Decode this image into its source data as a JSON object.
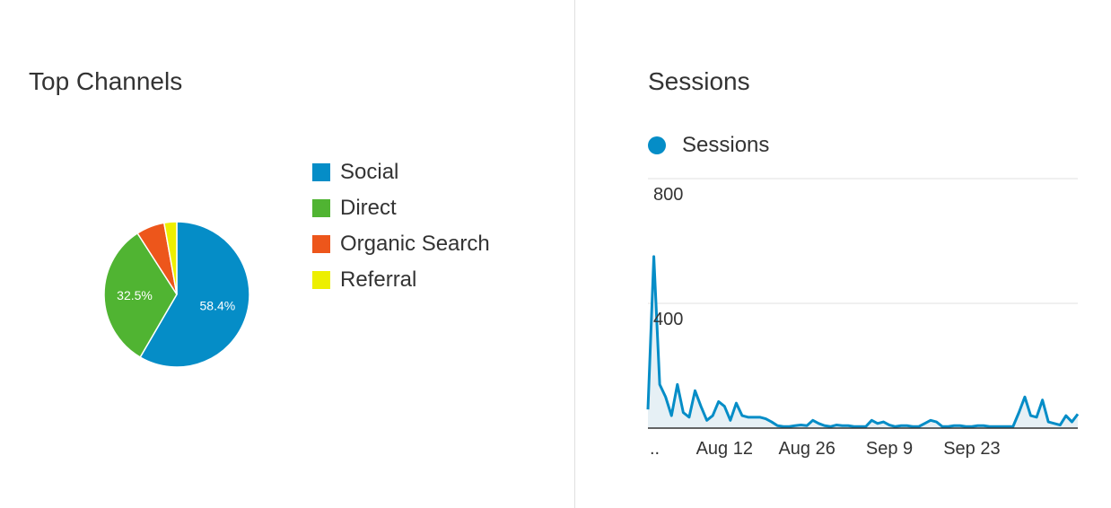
{
  "colors": {
    "social": "#058dc7",
    "direct": "#50b432",
    "organic": "#ed561b",
    "referral": "#edef00",
    "sessions_line": "#058dc7",
    "sessions_fill": "#e6f0f5",
    "grid": "#e0e0e0",
    "axis": "#333333"
  },
  "left_panel": {
    "title": "Top Channels"
  },
  "right_panel": {
    "title": "Sessions"
  },
  "chart_data": [
    {
      "type": "pie",
      "title": "Top Channels",
      "legend_position": "right",
      "slices": [
        {
          "label": "Social",
          "value": 58.4,
          "display": "58.4%",
          "color": "#058dc7"
        },
        {
          "label": "Direct",
          "value": 32.5,
          "display": "32.5%",
          "color": "#50b432"
        },
        {
          "label": "Organic Search",
          "value": 6.3,
          "display": "",
          "color": "#ed561b"
        },
        {
          "label": "Referral",
          "value": 2.8,
          "display": "",
          "color": "#edef00"
        }
      ]
    },
    {
      "type": "area",
      "title": "Sessions",
      "legend_position": "top-left",
      "series": [
        {
          "name": "Sessions",
          "values": [
            60,
            550,
            140,
            100,
            40,
            140,
            50,
            35,
            120,
            70,
            25,
            40,
            85,
            70,
            25,
            80,
            40,
            35,
            35,
            35,
            30,
            20,
            8,
            5,
            5,
            8,
            10,
            8,
            25,
            15,
            8,
            5,
            10,
            8,
            8,
            5,
            5,
            5,
            25,
            15,
            20,
            10,
            5,
            8,
            8,
            5,
            5,
            15,
            25,
            20,
            5,
            5,
            8,
            8,
            5,
            5,
            8,
            8,
            5,
            5,
            5,
            5,
            5,
            50,
            100,
            40,
            35,
            90,
            20,
            15,
            10,
            40,
            20,
            45
          ]
        }
      ],
      "ylim": [
        0,
        800
      ],
      "y_ticks": [
        "800",
        "400"
      ],
      "x_tick_labels": [
        {
          "label": "..",
          "index": 0
        },
        {
          "label": "Aug 12",
          "index": 13
        },
        {
          "label": "Aug 26",
          "index": 27
        },
        {
          "label": "Sep 9",
          "index": 41
        },
        {
          "label": "Sep 23",
          "index": 55
        }
      ],
      "grid": true
    }
  ]
}
